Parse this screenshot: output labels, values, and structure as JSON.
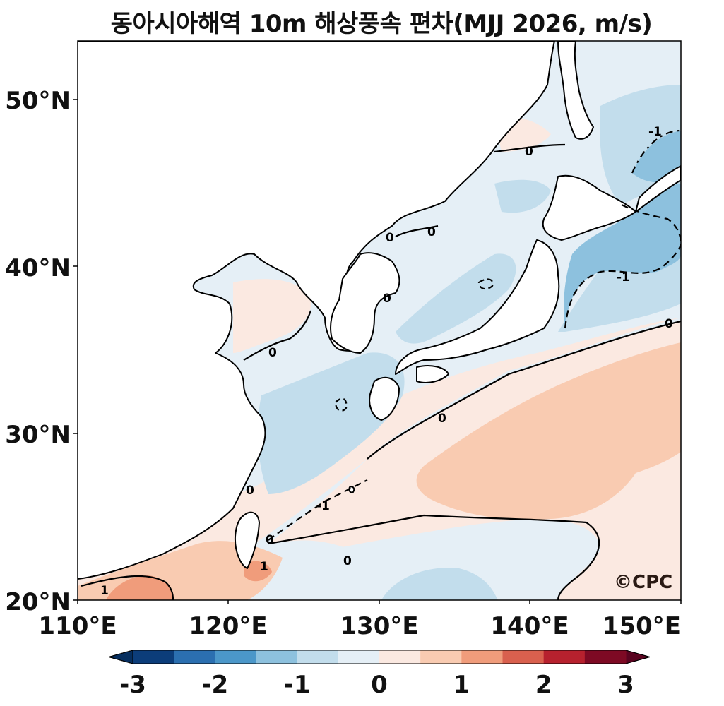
{
  "title": "동아시아해역 10m 해상풍속 편차(MJJ 2026, m/s)",
  "watermark": "©CPC",
  "axes": {
    "x_ticks": [
      "110°E",
      "120°E",
      "130°E",
      "140°E",
      "150°E"
    ],
    "y_ticks": [
      "20°N",
      "30°N",
      "40°N",
      "50°N"
    ],
    "lon_range": [
      110,
      150
    ],
    "lat_range": [
      20,
      53.5
    ]
  },
  "colorbar": {
    "ticks": [
      "-3",
      "-2",
      "-1",
      "0",
      "1",
      "2",
      "3"
    ],
    "levels": [
      -3,
      -2.5,
      -2,
      -1.5,
      -1,
      -0.5,
      0,
      0.5,
      1,
      1.5,
      2,
      2.5,
      3
    ],
    "colors": [
      "#0c3d7a",
      "#2b6fb0",
      "#4b97c9",
      "#8dc1de",
      "#c2ddec",
      "#e5eff6",
      "#fbe9e1",
      "#f9cbb1",
      "#f09c7b",
      "#d9604e",
      "#b7212e",
      "#7e0a24"
    ],
    "extend": "both"
  },
  "contour_labels": [
    "0",
    "0",
    "0",
    "0",
    "0",
    "0",
    "0",
    "0",
    "0",
    "0",
    "-1",
    "-1",
    "-1",
    "1",
    "1"
  ],
  "colors": {
    "land": "#ffffff",
    "coast": "#000000",
    "contour": "#000000"
  }
}
